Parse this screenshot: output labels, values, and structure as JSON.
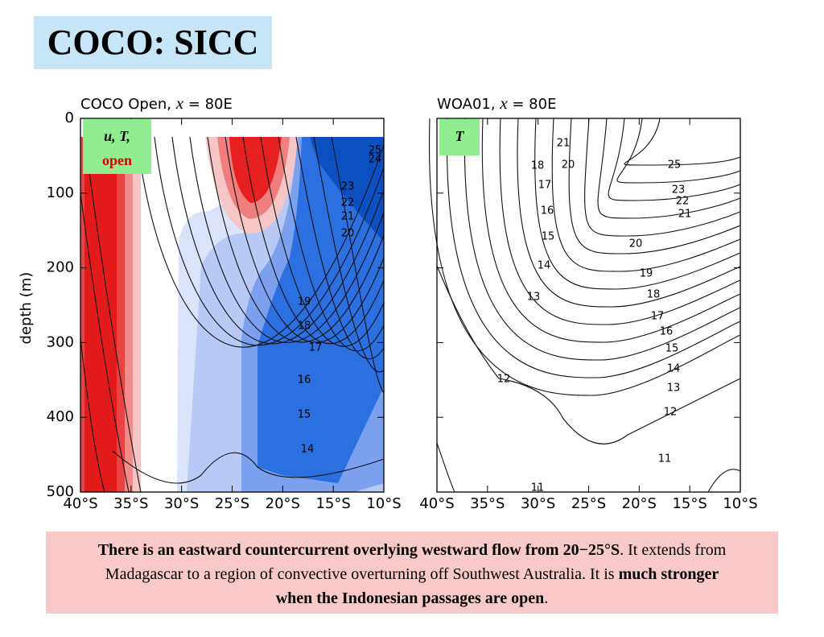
{
  "title": "COCO: SICC",
  "panels": [
    {
      "title": {
        "prefix": "COCO Open, ",
        "var": "x",
        "suffix": " = 80E"
      },
      "badge": {
        "vars": "u, T,",
        "word": "open"
      },
      "contour_labels": [
        25,
        24,
        23,
        22,
        21,
        20,
        19,
        18,
        17,
        16,
        15,
        14
      ]
    },
    {
      "title": {
        "prefix": "WOA01, ",
        "var": "x",
        "suffix": " = 80E"
      },
      "badge": {
        "vars": "T"
      },
      "contour_labels": [
        25,
        23,
        22,
        21,
        20,
        19,
        18,
        17,
        16,
        15,
        14,
        13,
        12,
        11,
        21,
        20,
        18,
        17,
        16,
        15,
        14,
        13,
        12,
        11
      ]
    }
  ],
  "y_axis_label": "depth (m)",
  "ylim": [
    0,
    500
  ],
  "yticks": [
    0,
    100,
    200,
    300,
    400,
    500
  ],
  "xlim": [
    -40,
    -10
  ],
  "xticks": [
    {
      "value": -40,
      "label": "40°S"
    },
    {
      "value": -35,
      "label": "35°S"
    },
    {
      "value": -30,
      "label": "30°S"
    },
    {
      "value": -25,
      "label": "25°S"
    },
    {
      "value": -20,
      "label": "20°S"
    },
    {
      "value": -15,
      "label": "15°S"
    },
    {
      "value": -10,
      "label": "10°S"
    }
  ],
  "caption": [
    {
      "text": "There is an eastward countercurrent overlying westward flow from 20−25°S",
      "bold": true
    },
    {
      "text": ".  It extends from Madagascar to a region of convective overturning off Southwest Australia.  It is ",
      "bold": false
    },
    {
      "text": "much stronger when the Indonesian passages are open",
      "bold": true
    },
    {
      "text": ".",
      "bold": false
    }
  ]
}
